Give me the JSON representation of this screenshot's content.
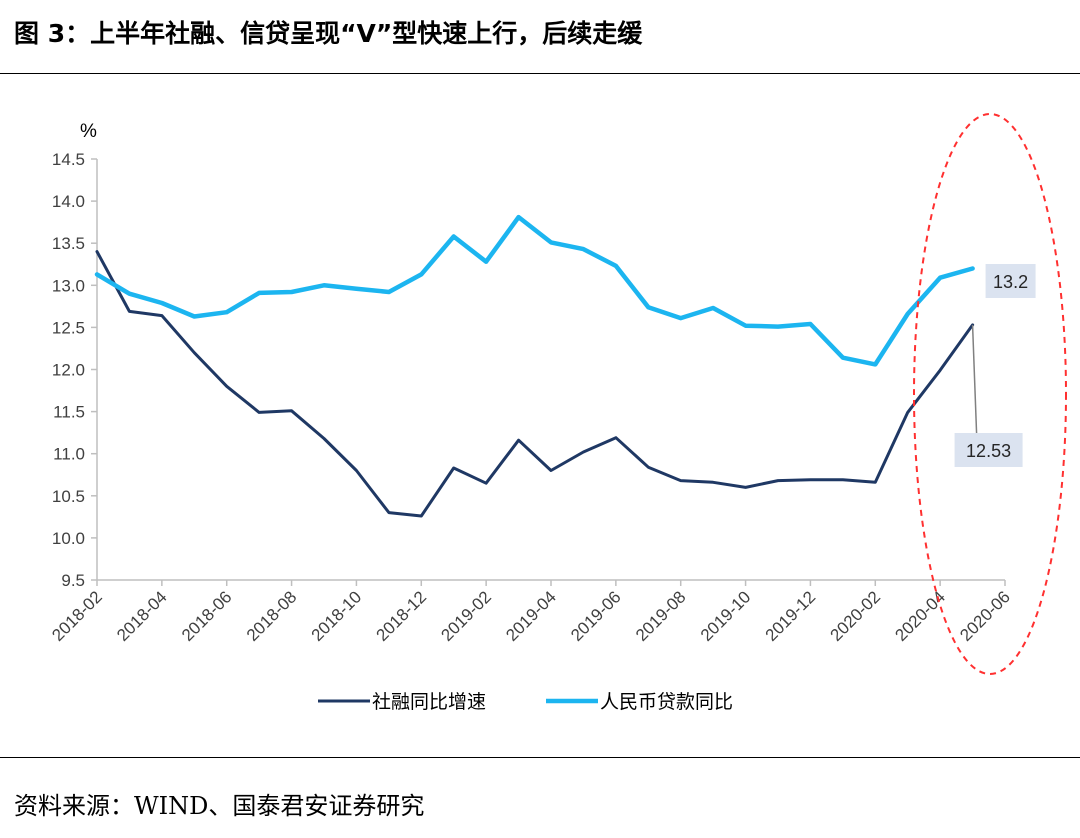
{
  "figure": {
    "title": "图 3：上半年社融、信贷呈现“V”型快速上行，后续走缓",
    "source": "资料来源：WIND、国泰君安证券研究"
  },
  "chart_data": {
    "type": "line",
    "ylabel": "%",
    "ylim": [
      9.5,
      14.5
    ],
    "yticks": [
      "9.5",
      "10.0",
      "10.5",
      "11.0",
      "11.5",
      "12.0",
      "12.5",
      "13.0",
      "13.5",
      "14.0",
      "14.5"
    ],
    "xtick_labels": [
      "2018-02",
      "2018-04",
      "2018-06",
      "2018-08",
      "2018-10",
      "2018-12",
      "2019-02",
      "2019-04",
      "2019-06",
      "2019-08",
      "2019-10",
      "2019-12",
      "2020-02",
      "2020-04",
      "2020-06"
    ],
    "x": [
      "2018-02",
      "2018-03",
      "2018-04",
      "2018-05",
      "2018-06",
      "2018-07",
      "2018-08",
      "2018-09",
      "2018-10",
      "2018-11",
      "2018-12",
      "2019-01",
      "2019-02",
      "2019-03",
      "2019-04",
      "2019-05",
      "2019-06",
      "2019-07",
      "2019-08",
      "2019-09",
      "2019-10",
      "2019-11",
      "2019-12",
      "2020-01",
      "2020-02",
      "2020-03",
      "2020-04",
      "2020-05",
      "2020-06"
    ],
    "grid": false,
    "legend": "bottom",
    "series": [
      {
        "name": "社融同比增速",
        "color": "#1f3864",
        "values": [
          13.4,
          12.69,
          12.64,
          12.2,
          11.8,
          11.49,
          11.51,
          11.18,
          10.8,
          10.3,
          10.26,
          10.83,
          10.65,
          11.16,
          10.8,
          11.02,
          11.19,
          10.84,
          10.68,
          10.66,
          10.6,
          10.68,
          10.69,
          10.69,
          10.66,
          11.49,
          11.99,
          12.53,
          null
        ]
      },
      {
        "name": "人民币贷款同比",
        "color": "#1cb5f0",
        "values": [
          13.13,
          12.9,
          12.79,
          12.63,
          12.68,
          12.91,
          12.92,
          13.0,
          12.96,
          12.92,
          13.13,
          13.58,
          13.28,
          13.81,
          13.51,
          13.43,
          13.23,
          12.74,
          12.61,
          12.73,
          12.52,
          12.51,
          12.54,
          12.14,
          12.06,
          12.66,
          13.09,
          13.2,
          null
        ]
      }
    ],
    "annotations": [
      {
        "text": "13.2",
        "series": "人民币贷款同比",
        "at": "2020-05"
      },
      {
        "text": "12.53",
        "series": "社融同比增速",
        "at": "2020-05"
      }
    ]
  }
}
